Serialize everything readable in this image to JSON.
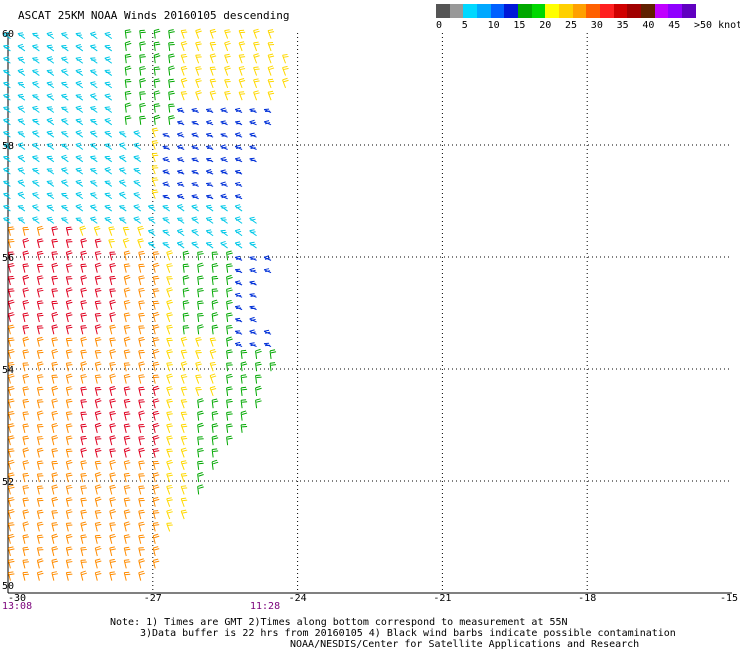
{
  "title": "ASCAT 25KM NOAA Winds 20160105 descending",
  "legend": {
    "colors": [
      "#555555",
      "#999999",
      "#00d8ff",
      "#00a8ff",
      "#0060ff",
      "#0018d8",
      "#00a800",
      "#00d800",
      "#ffff00",
      "#ffd000",
      "#ffa000",
      "#ff6000",
      "#ff2020",
      "#d00000",
      "#a00000",
      "#602000",
      "#c000ff",
      "#9000ff",
      "#6000c0"
    ],
    "ticks": [
      "0",
      "5",
      "10",
      "15",
      "20",
      "25",
      "30",
      "35",
      "40",
      "45",
      ">50 knots"
    ]
  },
  "axes": {
    "x_labels": [
      "-30",
      "-27",
      "-24",
      "-21",
      "-18",
      "-15"
    ],
    "y_labels": [
      "50",
      "52",
      "54",
      "56",
      "58",
      "60"
    ],
    "lon_range": [
      -30,
      -15
    ],
    "lat_range": [
      50,
      60
    ]
  },
  "times": {
    "left": "13:08",
    "right": "11:28"
  },
  "notes": [
    "Note: 1) Times are GMT 2)Times along bottom correspond to measurement at 55N",
    "3)Data buffer is 22 hrs from 20160105 4) Black wind barbs indicate possible contamination",
    "NOAA/NESDIS/Center for Satellite Applications and Research"
  ],
  "swath_colors": {
    "calm_cyan": "#00c8e8",
    "blue": "#0030d8",
    "green": "#00a800",
    "yellow": "#ffd800",
    "orange": "#ff8c00",
    "red": "#e00020"
  }
}
